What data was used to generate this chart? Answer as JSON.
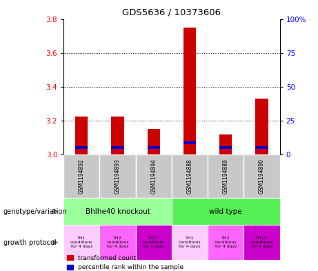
{
  "title": "GDS5636 / 10373606",
  "samples": [
    "GSM1194892",
    "GSM1194893",
    "GSM1194894",
    "GSM1194888",
    "GSM1194889",
    "GSM1194890"
  ],
  "red_values": [
    3.225,
    3.225,
    3.15,
    3.75,
    3.12,
    3.33
  ],
  "blue_values": [
    3.04,
    3.04,
    3.04,
    3.07,
    3.04,
    3.04
  ],
  "ylim_left": [
    3.0,
    3.8
  ],
  "yticks_left": [
    3.0,
    3.2,
    3.4,
    3.6,
    3.8
  ],
  "ylim_right": [
    0,
    100
  ],
  "yticks_right": [
    0,
    25,
    50,
    75,
    100
  ],
  "yticklabels_right": [
    "0",
    "25",
    "50",
    "75",
    "100%"
  ],
  "red_color": "#cc0000",
  "blue_color": "#0000cc",
  "sample_bg_color": "#c8c8c8",
  "knockout_color": "#99ff99",
  "wildtype_color": "#55ee55",
  "growth_colors": [
    "#ffccff",
    "#ff66ff",
    "#cc00cc",
    "#ffccff",
    "#ff66ff",
    "#cc00cc"
  ],
  "growth_labels": [
    "TH1\nconditions\nfor 4 days",
    "TH2\nconditions\nfor 4 days",
    "TH17\nconditions\nfor 4 days",
    "TH1\nconditions\nfor 4 days",
    "TH2\nconditions\nfor 4 days",
    "TH17\nconditions\nfor 4 days"
  ],
  "legend_red": "transformed count",
  "legend_blue": "percentile rank within the sample",
  "label_geno": "genotype/variation",
  "label_growth": "growth protocol"
}
